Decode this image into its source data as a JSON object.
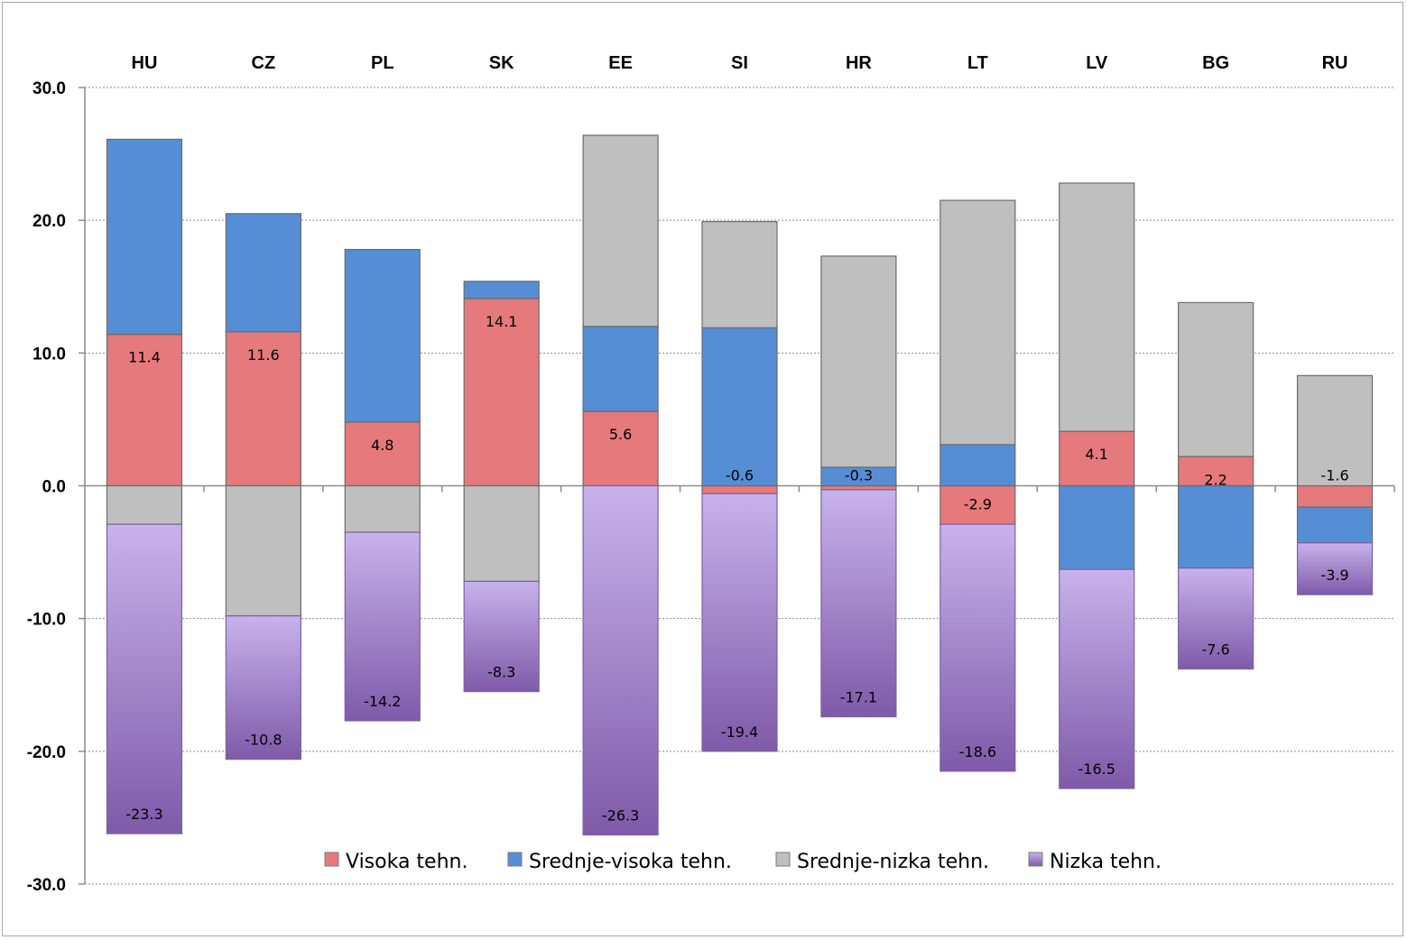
{
  "chart_data": {
    "type": "bar",
    "stacked": true,
    "title": "",
    "xlabel": "",
    "ylabel": "",
    "ylim": [
      -30,
      30
    ],
    "yticks": [
      30,
      20,
      10,
      0,
      -10,
      -20,
      -30
    ],
    "ytick_labels": [
      "30.0",
      "20.0",
      "10.0",
      "0.0",
      "-10.0",
      "-20.0",
      "-30.0"
    ],
    "grid": true,
    "category_labels_position": "top",
    "legend_position": "bottom",
    "categories": [
      "HU",
      "CZ",
      "PL",
      "SK",
      "EE",
      "SI",
      "HR",
      "LT",
      "LV",
      "BG",
      "RU"
    ],
    "series": [
      {
        "name": "Visoka tehn.",
        "color": "#e5797c",
        "values": [
          11.4,
          11.6,
          4.8,
          14.1,
          5.6,
          -0.6,
          -0.3,
          -2.9,
          4.1,
          2.2,
          -1.6
        ],
        "labels": [
          "11.4",
          "11.6",
          "4.8",
          "14.1",
          "5.6",
          "-0.6",
          "-0.3",
          "-2.9",
          "4.1",
          "2.2",
          "-1.6"
        ]
      },
      {
        "name": "Srednje-visoka tehn.",
        "color": "#558ed5",
        "values": [
          14.7,
          8.9,
          13.0,
          1.3,
          6.4,
          11.9,
          1.4,
          3.1,
          -6.3,
          -6.2,
          -2.7
        ],
        "labels": []
      },
      {
        "name": "Srednje-nizka tehn.",
        "color": "#bfbfbf",
        "values": [
          -2.9,
          -9.8,
          -3.5,
          -7.2,
          14.4,
          8.0,
          15.9,
          18.4,
          18.7,
          11.6,
          8.3
        ],
        "labels": []
      },
      {
        "name": "Nizka tehn.",
        "color": "#a98ed2",
        "values": [
          -23.3,
          -10.8,
          -14.2,
          -8.3,
          -26.3,
          -19.4,
          -17.1,
          -18.6,
          -16.5,
          -7.6,
          -3.9
        ],
        "labels": [
          "-23.3",
          "-10.8",
          "-14.2",
          "-8.3",
          "-26.3",
          "-19.4",
          "-17.1",
          "-18.6",
          "-16.5",
          "-7.6",
          "-3.9"
        ]
      }
    ],
    "labeled_series": [
      "Visoka tehn.",
      "Nizka tehn."
    ]
  }
}
